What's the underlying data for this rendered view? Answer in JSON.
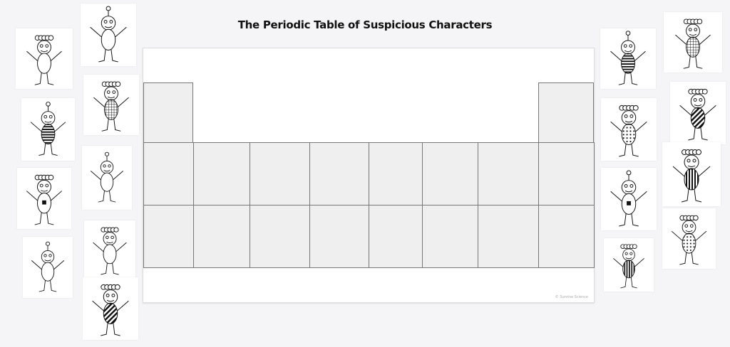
{
  "title": "The Periodic Table of Suspicious Characters",
  "watermark": "© Sunrise Science",
  "characters": [
    {
      "hair": "curly",
      "pattern": "plain",
      "side": "left"
    },
    {
      "hair": "antenna",
      "pattern": "plain",
      "side": "left"
    },
    {
      "hair": "antenna",
      "pattern": "stripes",
      "side": "left"
    },
    {
      "hair": "curly",
      "pattern": "grid",
      "side": "left"
    },
    {
      "hair": "curly",
      "pattern": "dot",
      "side": "left"
    },
    {
      "hair": "antenna",
      "pattern": "plain",
      "side": "left"
    },
    {
      "hair": "antenna",
      "pattern": "plain",
      "side": "left"
    },
    {
      "hair": "curly",
      "pattern": "plain",
      "side": "left"
    },
    {
      "hair": "curly",
      "pattern": "diagonal",
      "side": "left"
    },
    {
      "hair": "antenna",
      "pattern": "stripes",
      "side": "right"
    },
    {
      "hair": "curly",
      "pattern": "grid",
      "side": "right"
    },
    {
      "hair": "curly",
      "pattern": "dots",
      "side": "right"
    },
    {
      "hair": "curly",
      "pattern": "diagonal",
      "side": "right"
    },
    {
      "hair": "antenna",
      "pattern": "dot",
      "side": "right"
    },
    {
      "hair": "curly",
      "pattern": "vstripes",
      "side": "right"
    },
    {
      "hair": "curly",
      "pattern": "vstripes",
      "side": "right"
    },
    {
      "hair": "curly",
      "pattern": "dots",
      "side": "right"
    }
  ]
}
